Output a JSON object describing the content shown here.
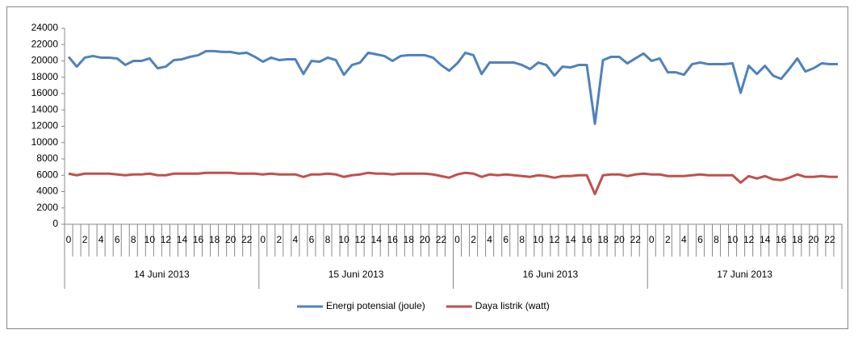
{
  "chart_data": {
    "type": "line",
    "categories": [
      "0",
      null,
      "2",
      null,
      "4",
      null,
      "6",
      null,
      "8",
      null,
      "10",
      null,
      "12",
      null,
      "14",
      null,
      "16",
      null,
      "18",
      null,
      "20",
      null,
      "22",
      null,
      "0",
      null,
      "2",
      null,
      "4",
      null,
      "6",
      null,
      "8",
      null,
      "10",
      null,
      "12",
      null,
      "14",
      null,
      "16",
      null,
      "18",
      null,
      "20",
      null,
      "22",
      null,
      "0",
      null,
      "2",
      null,
      "4",
      null,
      "6",
      null,
      "8",
      null,
      "10",
      null,
      "12",
      null,
      "14",
      null,
      "16",
      null,
      "18",
      null,
      "20",
      null,
      "22",
      null,
      "0",
      null,
      "2",
      null,
      "4",
      null,
      "6",
      null,
      "8",
      null,
      "10",
      null,
      "12",
      null,
      "14",
      null,
      "16",
      null,
      "18",
      null,
      "20",
      null,
      "22",
      null
    ],
    "x_groups": [
      "14 Juni 2013",
      "15 Juni 2013",
      "16 Juni 2013",
      "17 Juni 2013"
    ],
    "series": [
      {
        "name": "Energi potensial (joule)",
        "color": "#4f81bd",
        "values": [
          20500,
          19300,
          20400,
          20600,
          20400,
          20400,
          20300,
          19500,
          20000,
          20000,
          20300,
          19100,
          19300,
          20100,
          20200,
          20500,
          20700,
          21200,
          21200,
          21100,
          21100,
          20900,
          21000,
          20500,
          19900,
          20400,
          20100,
          20200,
          20200,
          18400,
          20000,
          19900,
          20400,
          20100,
          18300,
          19500,
          19800,
          21000,
          20800,
          20600,
          20000,
          20600,
          20700,
          20700,
          20700,
          20400,
          19500,
          18800,
          19700,
          21000,
          20700,
          18400,
          19800,
          19800,
          19800,
          19800,
          19500,
          19000,
          19800,
          19500,
          18200,
          19300,
          19200,
          19500,
          19500,
          12300,
          20100,
          20500,
          20500,
          19700,
          20300,
          20900,
          20000,
          20300,
          18600,
          18600,
          18300,
          19600,
          19800,
          19600,
          19600,
          19600,
          19700,
          16100,
          19400,
          18400,
          19400,
          18200,
          17800,
          19000,
          20300,
          18700,
          19100,
          19700,
          19600,
          19600
        ]
      },
      {
        "name": "Daya listrik (watt)",
        "color": "#c0504d",
        "values": [
          6200,
          6000,
          6200,
          6200,
          6200,
          6200,
          6100,
          6000,
          6100,
          6100,
          6200,
          6000,
          6000,
          6200,
          6200,
          6200,
          6200,
          6300,
          6300,
          6300,
          6300,
          6200,
          6200,
          6200,
          6100,
          6200,
          6100,
          6100,
          6100,
          5800,
          6100,
          6100,
          6200,
          6100,
          5800,
          6000,
          6100,
          6300,
          6200,
          6200,
          6100,
          6200,
          6200,
          6200,
          6200,
          6100,
          5900,
          5700,
          6100,
          6300,
          6200,
          5800,
          6100,
          6000,
          6100,
          6000,
          5900,
          5800,
          6000,
          5900,
          5700,
          5900,
          5900,
          6000,
          6000,
          3700,
          6000,
          6100,
          6100,
          5900,
          6100,
          6200,
          6100,
          6100,
          5900,
          5900,
          5900,
          6000,
          6100,
          6000,
          6000,
          6000,
          6000,
          5100,
          5900,
          5600,
          5900,
          5500,
          5400,
          5700,
          6100,
          5800,
          5800,
          5900,
          5800,
          5800
        ]
      }
    ],
    "ylim": [
      0,
      24000
    ],
    "yticks": [
      0,
      2000,
      4000,
      6000,
      8000,
      10000,
      12000,
      14000,
      16000,
      18000,
      20000,
      22000,
      24000
    ],
    "legend": "bottom"
  }
}
